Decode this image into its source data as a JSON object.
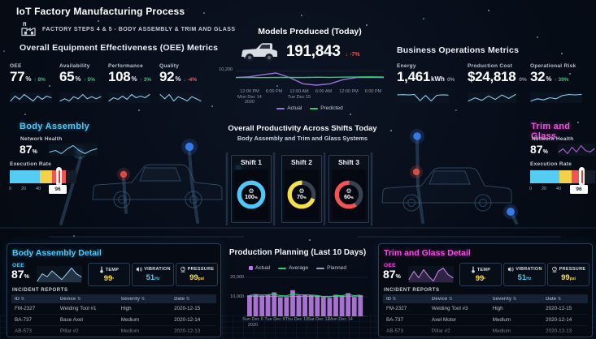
{
  "colors": {
    "cyan": "#4fc8f8",
    "magenta": "#f24fe0",
    "green": "#2ecc71",
    "red": "#eb5b5b",
    "yellow": "#ffe04a",
    "purple_bar": "#b77be0",
    "purple_line": "#9b72d8",
    "gray": "#9aa6b4"
  },
  "icons": {
    "factory": "factory-icon",
    "gear": "⚙",
    "sort": "⇅",
    "thermometer": "thermometer-icon",
    "vibration": "vibration-icon",
    "pressure": "pressure-icon",
    "truck": "truck-image"
  },
  "header": {
    "title": "IoT Factory Manufacturing Process",
    "subtitle": "FACTORY STEPS 4 & 5 - BODY ASSEMBLY & TRIM AND GLASS"
  },
  "oee_section": {
    "title": "Overall Equipment Effectiveness (OEE) Metrics",
    "kpis": [
      {
        "label": "OEE",
        "value": "77",
        "unit": "%",
        "delta": "↑ 8%",
        "direction": "up",
        "spark": [
          72,
          75,
          73,
          76,
          74,
          72,
          75,
          73,
          75,
          74
        ]
      },
      {
        "label": "Availability",
        "value": "65",
        "unit": "%",
        "delta": "↑ 5%",
        "direction": "up",
        "spark": [
          63,
          64,
          63,
          65,
          64,
          66,
          64,
          65,
          64,
          65
        ]
      },
      {
        "label": "Performance",
        "value": "108",
        "unit": "%",
        "delta": "↑ 3%",
        "direction": "up",
        "spark": [
          104,
          106,
          105,
          107,
          105,
          108,
          106,
          107,
          106,
          108
        ]
      },
      {
        "label": "Quality",
        "value": "92",
        "unit": "%",
        "delta": "↓ -4%",
        "direction": "down",
        "spark": [
          95,
          93,
          95,
          92,
          94,
          93,
          92,
          94,
          93,
          92
        ]
      }
    ]
  },
  "models_produced": {
    "title": "Models Produced (Today)",
    "value": "191,843",
    "delta": "↓ -7%",
    "direction": "down",
    "y_tick": "10,200",
    "x_ticks": [
      "12:00 PM",
      "6:00 PM",
      "12:00 AM",
      "6:00 AM",
      "12:00 PM",
      "6:00 PM"
    ],
    "x_subticks": [
      "Mon Dec 14",
      "",
      "Tue Dec 15",
      "",
      "",
      ""
    ],
    "x_subticks2": [
      "2020",
      "",
      "",
      "",
      "",
      ""
    ],
    "legend": [
      {
        "label": "Actual",
        "color": "#9b72d8"
      },
      {
        "label": "Predicted",
        "color": "#2ecc71"
      }
    ],
    "chart_data": {
      "type": "line",
      "series": [
        {
          "name": "Actual",
          "values": [
            10150,
            10160,
            10190,
            10215,
            10150,
            10060,
            10040,
            10060,
            10120,
            10150,
            10152,
            10148
          ]
        },
        {
          "name": "Predicted",
          "values": [
            10150,
            10150,
            10148,
            10150,
            10152,
            10150,
            10154,
            10152,
            10156,
            10158,
            10160,
            10158
          ]
        }
      ]
    }
  },
  "business_section": {
    "title": "Business Operations Metrics",
    "kpis": [
      {
        "label": "Energy",
        "value": "1,461",
        "unit": "kWh",
        "delta": "0%",
        "direction": "flat",
        "spark": [
          1466,
          1467,
          1465,
          1468,
          1430,
          1462,
          1428,
          1463,
          1466,
          1464
        ]
      },
      {
        "label": "Production Cost",
        "value": "$24,818",
        "unit": "",
        "delta": "0%",
        "direction": "flat",
        "spark": [
          24300,
          24550,
          24350,
          24700,
          24420,
          24780,
          24500,
          24818
        ]
      },
      {
        "label": "Operational Risk",
        "value": "32",
        "unit": "%",
        "delta": "↑ 39%",
        "direction": "up",
        "spark": [
          29,
          30,
          29.5,
          30.5,
          30,
          31.5,
          32,
          31.8,
          32
        ]
      }
    ]
  },
  "body_assembly": {
    "title": "Body Assembly",
    "network_health": {
      "label": "Network Health",
      "value": "87",
      "unit": "%",
      "spark": [
        86,
        87,
        85,
        88,
        90,
        87,
        85,
        87,
        88
      ]
    },
    "execution_rate": {
      "label": "Execution Rate",
      "ticks": [
        "0",
        "20",
        "40",
        "60"
      ],
      "marker": "96"
    }
  },
  "shifts": {
    "title": "Overall Productivity Across Shifts Today",
    "subtitle": "Body Assembly and Trim and Glass Systems",
    "unit": "%",
    "items": [
      {
        "label": "Shift 1",
        "value": 100,
        "display": "100",
        "color": "#4fc8f8"
      },
      {
        "label": "Shift 2",
        "value": 70,
        "display": "70",
        "color": "#f5e04b"
      },
      {
        "label": "Shift 3",
        "value": 60,
        "display": "60",
        "color": "#f05454"
      }
    ]
  },
  "trim_glass": {
    "title": "Trim and Glass",
    "network_health": {
      "label": "Network Health",
      "value": "87",
      "unit": "%",
      "spark": [
        86,
        88,
        85,
        89,
        86,
        90,
        87,
        86,
        88
      ]
    },
    "execution_rate": {
      "label": "Execution Rate",
      "ticks": [
        "0",
        "20",
        "40",
        "60"
      ],
      "marker": "96"
    }
  },
  "body_assembly_detail": {
    "title": "Body Assembly Detail",
    "oee": {
      "label": "OEE",
      "value": "87",
      "unit": "%",
      "spark": [
        83,
        88,
        86,
        90,
        87,
        84,
        88,
        92,
        88,
        86
      ]
    },
    "gauges": [
      {
        "label": "TEMP",
        "value": "99",
        "unit": "°",
        "color": "#ffe04a"
      },
      {
        "label": "VIBRATION",
        "value": "51",
        "unit": "Hz",
        "color": "#56ccf2"
      },
      {
        "label": "PRESSURE",
        "value": "99",
        "unit": "psi",
        "color": "#ffe04a"
      }
    ],
    "incidents": {
      "title": "INCIDENT REPORTS",
      "columns": [
        "ID",
        "Device",
        "Severity",
        "Date"
      ],
      "rows": [
        [
          "FM-2327",
          "Welding Tool #1",
          "High",
          "2020-12-15"
        ],
        [
          "BA-737",
          "Base Axel",
          "Medium",
          "2020-12-14"
        ],
        [
          "AB-573",
          "Pillar #2",
          "Medium",
          "2020-12-13"
        ]
      ]
    }
  },
  "production_planning": {
    "title": "Production Planning (Last 10 Days)",
    "legend": [
      {
        "label": "Actual",
        "color": "#b77be0"
      },
      {
        "label": "Average",
        "color": "#2ecc71"
      },
      {
        "label": "Planned",
        "color": "#9aa6b4"
      }
    ],
    "y_ticks": [
      "20,000",
      "10,000"
    ],
    "x_ticks": [
      "Sun Dec 6",
      "Tue Dec 8",
      "Thu Dec 10",
      "Sat Dec 12",
      "Mon Dec 14"
    ],
    "x_subtick": "2020",
    "chart_data": {
      "type": "bar",
      "bars": [
        10800,
        11400,
        10600,
        11000,
        12300,
        9800,
        9900,
        13400,
        10700,
        11200,
        10900,
        10600,
        9900,
        9500,
        11100,
        10400,
        11900,
        9900,
        10900
      ],
      "average": [
        10800,
        11000,
        10900,
        11100,
        11400,
        10600,
        10500,
        11600,
        11100,
        11000,
        10900,
        10700,
        10100,
        9900,
        10700,
        10600,
        11200,
        10600,
        10900
      ],
      "planned": 10300,
      "ylim": [
        0,
        20000
      ]
    }
  },
  "trim_glass_detail": {
    "title": "Trim and Glass Detail",
    "oee": {
      "label": "OEE",
      "value": "87",
      "unit": "%",
      "spark": [
        84,
        89,
        85,
        90,
        86,
        83,
        89,
        91,
        87,
        85
      ]
    },
    "gauges": [
      {
        "label": "TEMP",
        "value": "99",
        "unit": "°",
        "color": "#ffe04a"
      },
      {
        "label": "VIBRATION",
        "value": "51",
        "unit": "Hz",
        "color": "#56ccf2"
      },
      {
        "label": "PRESSURE",
        "value": "99",
        "unit": "psi",
        "color": "#ffe04a"
      }
    ],
    "incidents": {
      "title": "INCIDENT REPORTS",
      "columns": [
        "ID",
        "Device",
        "Severity",
        "Date"
      ],
      "rows": [
        [
          "FM-2327",
          "Welding Tool #3",
          "High",
          "2020-12-15"
        ],
        [
          "BA-737",
          "Axel Motor",
          "Medium",
          "2020-12-14"
        ],
        [
          "AB-573",
          "Pillar #2",
          "Medium",
          "2020-12-13"
        ]
      ]
    }
  }
}
